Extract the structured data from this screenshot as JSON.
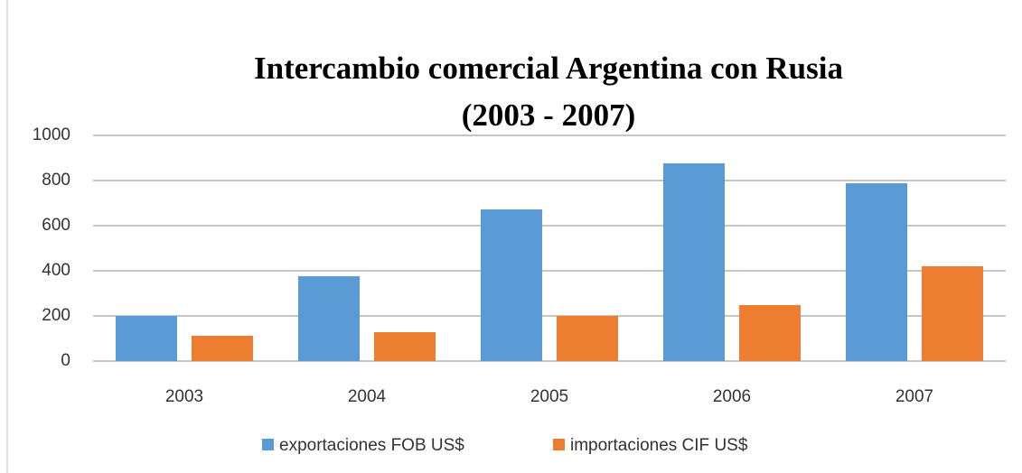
{
  "chart_data": {
    "type": "bar",
    "title": "Intercambio comercial Argentina con Rusia (2003 - 2007)",
    "categories": [
      "2003",
      "2004",
      "2005",
      "2006",
      "2007"
    ],
    "series": [
      {
        "name": "exportaciones FOB US$",
        "color": "#5b9bd5",
        "values": [
          200,
          376,
          672,
          876,
          788
        ]
      },
      {
        "name": "importaciones CIF US$",
        "color": "#ed7d31",
        "values": [
          112,
          128,
          200,
          248,
          420
        ]
      }
    ],
    "ylim": [
      0,
      1000
    ],
    "yticks": [
      0,
      200,
      400,
      600,
      800,
      1000
    ],
    "grid": true,
    "legend": "bottom"
  }
}
